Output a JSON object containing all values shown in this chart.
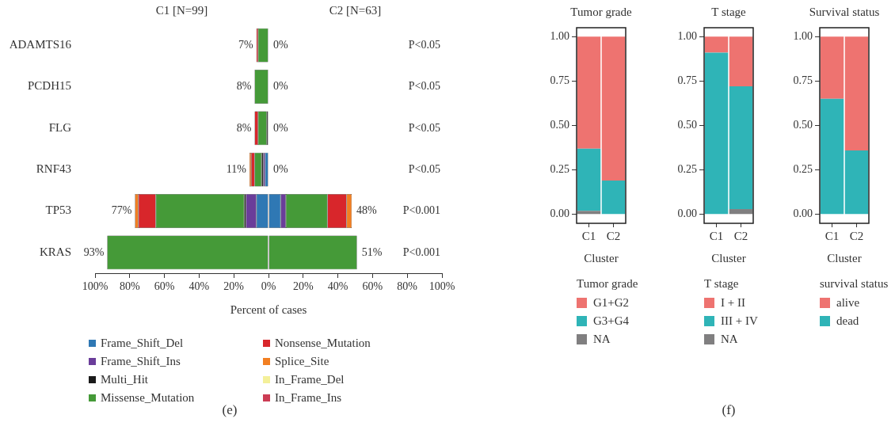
{
  "chart_data": [
    {
      "type": "bar",
      "orientation": "horizontal",
      "stacked": true,
      "categories": [
        "ADAMTS16",
        "PCDH15",
        "FLG",
        "RNF43",
        "TP53",
        "KRAS"
      ],
      "series": [
        {
          "name": "Frame_Shift_Del",
          "color": "#2f78b4",
          "values": [
            null,
            null,
            null,
            -2,
            -7,
            null
          ]
        },
        {
          "name": "Frame_Shift_Ins",
          "color": "#6a3d9a",
          "values": [
            null,
            null,
            null,
            -1,
            -6,
            null
          ]
        },
        {
          "name": "Multi_Hit",
          "color": "#1a1a1a",
          "values": [
            null,
            null,
            -1,
            -1,
            -1,
            null
          ]
        },
        {
          "name": "Missense_Mutation",
          "color": "#459a38",
          "values": [
            -6,
            -8,
            -5,
            -4,
            -51,
            -93
          ]
        },
        {
          "name": "Nonsense_Mutation",
          "color": "#d8262b",
          "values": [
            -1,
            null,
            -2,
            -2,
            -10,
            null
          ]
        },
        {
          "name": "Splice_Site",
          "color": "#f27f22",
          "values": [
            null,
            null,
            null,
            -1,
            -2,
            null
          ]
        },
        {
          "name": "In_Frame_Del",
          "color": "#f4f09a",
          "values": [
            null,
            null,
            null,
            null,
            null,
            null
          ]
        },
        {
          "name": "In_Frame_Ins",
          "color": "#cc3c54",
          "values": [
            null,
            null,
            null,
            null,
            null,
            null
          ]
        },
        {
          "color": "#2f78b4",
          "values": [
            null,
            null,
            null,
            null,
            7,
            null
          ]
        },
        {
          "color": "#6a3d9a",
          "values": [
            null,
            null,
            null,
            null,
            3,
            null
          ]
        },
        {
          "color": "#459a38",
          "values": [
            null,
            null,
            null,
            null,
            24,
            51
          ]
        },
        {
          "color": "#d8262b",
          "values": [
            null,
            null,
            null,
            null,
            11,
            null
          ]
        },
        {
          "color": "#f27f22",
          "values": [
            null,
            null,
            null,
            null,
            3,
            null
          ]
        }
      ],
      "xlim": [
        -100,
        100
      ],
      "xticks": [
        {
          "value": -100,
          "label": "100%"
        },
        {
          "value": -80,
          "label": "80%"
        },
        {
          "value": -60,
          "label": "60%"
        },
        {
          "value": -40,
          "label": "40%"
        },
        {
          "value": -20,
          "label": "20%"
        },
        {
          "value": 0,
          "label": "0%"
        },
        {
          "value": 20,
          "label": "20%"
        },
        {
          "value": 40,
          "label": "40%"
        },
        {
          "value": 60,
          "label": "60%"
        },
        {
          "value": 80,
          "label": "80%"
        },
        {
          "value": 100,
          "label": "100%"
        }
      ],
      "xlabel": "Percent of cases",
      "legend": "bottom",
      "grid": false,
      "annotations": [
        "C1 [N=99]",
        "C2 [N=63]",
        "(e)",
        "P<0.05",
        "P<0.05",
        "P<0.05",
        "P<0.05",
        "P<0.001",
        "P<0.001",
        {
          "text": "7%",
          "x": -7,
          "y": "ADAMTS16"
        },
        {
          "text": "0%",
          "x": 0,
          "y": "ADAMTS16"
        },
        {
          "text": "8%",
          "x": -8,
          "y": "PCDH15"
        },
        {
          "text": "0%",
          "x": 0,
          "y": "PCDH15"
        },
        {
          "text": "8%",
          "x": -8,
          "y": "FLG"
        },
        {
          "text": "0%",
          "x": 0,
          "y": "FLG"
        },
        {
          "text": "11%",
          "x": -11,
          "y": "RNF43"
        },
        {
          "text": "0%",
          "x": 0,
          "y": "RNF43"
        },
        {
          "text": "77%",
          "x": -77,
          "y": "TP53"
        },
        {
          "text": "48%",
          "x": 48,
          "y": "TP53"
        },
        {
          "text": "93%",
          "x": -93,
          "y": "KRAS"
        },
        {
          "text": "51%",
          "x": 51,
          "y": "KRAS"
        }
      ]
    },
    {
      "type": "bar",
      "stacked": true,
      "title": "Tumor grade",
      "categories": [
        "C1",
        "C2"
      ],
      "series": [
        {
          "name": "NA",
          "color": "#807f80",
          "values": [
            0.02,
            null
          ]
        },
        {
          "name": "G3+G4",
          "color": "#2fb4b7",
          "values": [
            0.35,
            0.19
          ]
        },
        {
          "name": "G1+G2",
          "color": "#ee7370",
          "values": [
            0.63,
            0.81
          ]
        }
      ],
      "ylim": [
        -0.05,
        1.05
      ],
      "yticks": [
        {
          "value": 0,
          "label": "0.00"
        },
        {
          "value": 0.25,
          "label": "0.25"
        },
        {
          "value": 0.5,
          "label": "0.50"
        },
        {
          "value": 0.75,
          "label": "0.75"
        },
        {
          "value": 1,
          "label": "1.00"
        }
      ],
      "xlabel": "Cluster",
      "legend_title": "Tumor grade",
      "legend": "bottom",
      "grid": false
    },
    {
      "type": "bar",
      "stacked": true,
      "title": "T stage",
      "categories": [
        "C1",
        "C2"
      ],
      "series": [
        {
          "name": "NA",
          "color": "#807f80",
          "values": [
            null,
            0.03
          ]
        },
        {
          "name": "III + IV",
          "color": "#2fb4b7",
          "values": [
            0.91,
            0.69
          ]
        },
        {
          "name": "I + II",
          "color": "#ee7370",
          "values": [
            0.09,
            0.28
          ]
        }
      ],
      "ylim": [
        -0.05,
        1.05
      ],
      "yticks": [
        {
          "value": 0,
          "label": "0.00"
        },
        {
          "value": 0.25,
          "label": "0.25"
        },
        {
          "value": 0.5,
          "label": "0.50"
        },
        {
          "value": 0.75,
          "label": "0.75"
        },
        {
          "value": 1,
          "label": "1.00"
        }
      ],
      "xlabel": "Cluster",
      "legend_title": "T stage",
      "legend": "bottom",
      "grid": false,
      "annotations": [
        "(f)"
      ]
    },
    {
      "type": "bar",
      "stacked": true,
      "title": "Survival status",
      "categories": [
        "C1",
        "C2"
      ],
      "series": [
        {
          "name": "dead",
          "color": "#2fb4b7",
          "values": [
            0.65,
            0.36
          ]
        },
        {
          "name": "alive",
          "color": "#ee7370",
          "values": [
            0.35,
            0.64
          ]
        }
      ],
      "ylim": [
        -0.05,
        1.05
      ],
      "yticks": [
        {
          "value": 0,
          "label": "0.00"
        },
        {
          "value": 0.25,
          "label": "0.25"
        },
        {
          "value": 0.5,
          "label": "0.50"
        },
        {
          "value": 0.75,
          "label": "0.75"
        },
        {
          "value": 1,
          "label": "1.00"
        }
      ],
      "xlabel": "Cluster",
      "legend_title": "survival status",
      "legend": "bottom",
      "grid": false
    }
  ]
}
